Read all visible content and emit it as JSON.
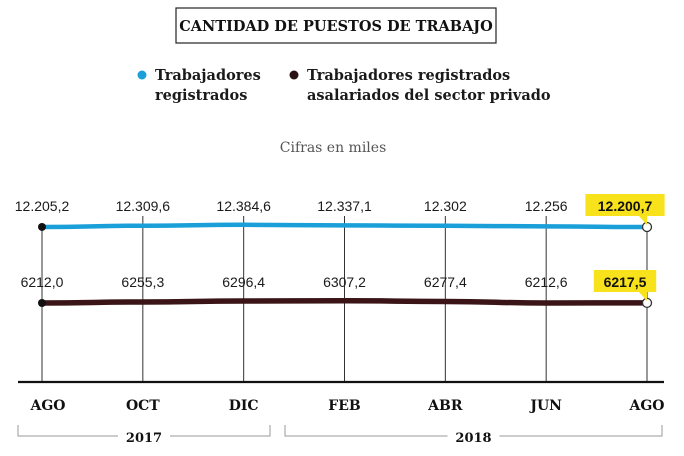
{
  "chart_data": {
    "type": "line",
    "title": "CANTIDAD DE PUESTOS DE TRABAJO",
    "subtitle": "Cifras en miles",
    "categories": [
      "AGO",
      "OCT",
      "DIC",
      "FEB",
      "ABR",
      "JUN",
      "AGO"
    ],
    "groups": [
      {
        "label": "2017"
      },
      {
        "label": "2018"
      }
    ],
    "series": [
      {
        "name": "Trabajadores registrados",
        "legend_lines": [
          "Trabajadores",
          "registrados"
        ],
        "color": "#1a9fd8",
        "values": [
          12205.2,
          12309.6,
          12384.6,
          12337.1,
          12302,
          12256,
          12200.7
        ],
        "labels": [
          "12.205,2",
          "12.309,6",
          "12.384,6",
          "12.337,1",
          "12.302",
          "12.256",
          "12.200,7"
        ]
      },
      {
        "name": "Trabajadores registrados asalariados del sector privado",
        "legend_lines": [
          "Trabajadores registrados",
          "asalariados del sector privado"
        ],
        "color": "#3a1416",
        "values": [
          6212.0,
          6255.3,
          6296.4,
          6307.2,
          6277.4,
          6212.6,
          6217.5
        ],
        "labels": [
          "6212,0",
          "6255,3",
          "6296,4",
          "6307,2",
          "6277,4",
          "6212,6",
          "6217,5"
        ]
      }
    ],
    "highlight_color": "#f7e21b",
    "legend_position": "top",
    "grid": true
  }
}
